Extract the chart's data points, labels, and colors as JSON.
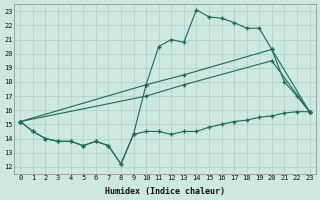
{
  "xlabel": "Humidex (Indice chaleur)",
  "bg_color": "#cce8e0",
  "grid_color": "#aacfc8",
  "line_color": "#1a6b5a",
  "xlim": [
    -0.5,
    23.5
  ],
  "ylim": [
    11.5,
    23.5
  ],
  "yticks": [
    12,
    13,
    14,
    15,
    16,
    17,
    18,
    19,
    20,
    21,
    22,
    23
  ],
  "xticks": [
    0,
    1,
    2,
    3,
    4,
    5,
    6,
    7,
    8,
    9,
    10,
    11,
    12,
    13,
    14,
    15,
    16,
    17,
    18,
    19,
    20,
    21,
    22,
    23
  ],
  "series": [
    {
      "x": [
        0,
        1,
        2,
        3,
        4,
        5,
        6,
        7,
        8,
        9,
        10,
        11,
        12,
        13,
        14,
        15,
        16,
        17,
        18,
        19,
        20,
        21,
        22,
        23
      ],
      "y": [
        15.2,
        14.5,
        14.0,
        13.8,
        13.8,
        13.5,
        13.8,
        13.5,
        12.2,
        14.3,
        17.8,
        20.5,
        21.0,
        20.8,
        23.1,
        22.6,
        22.5,
        22.2,
        21.8,
        21.8,
        20.3,
        18.0,
        17.0,
        15.9
      ]
    },
    {
      "x": [
        0,
        10,
        13,
        20,
        23
      ],
      "y": [
        15.2,
        17.8,
        18.5,
        20.3,
        15.9
      ]
    },
    {
      "x": [
        0,
        10,
        13,
        20,
        23
      ],
      "y": [
        15.2,
        17.0,
        17.8,
        19.5,
        15.9
      ]
    },
    {
      "x": [
        0,
        1,
        2,
        3,
        4,
        5,
        6,
        7,
        8,
        9,
        10,
        11,
        12,
        13,
        14,
        15,
        16,
        17,
        18,
        19,
        20,
        21,
        22,
        23
      ],
      "y": [
        15.2,
        14.5,
        14.0,
        13.8,
        13.8,
        13.5,
        13.8,
        13.5,
        12.2,
        14.3,
        14.5,
        14.5,
        14.3,
        14.5,
        14.5,
        14.8,
        15.0,
        15.2,
        15.3,
        15.5,
        15.6,
        15.8,
        15.9,
        15.9
      ]
    }
  ]
}
